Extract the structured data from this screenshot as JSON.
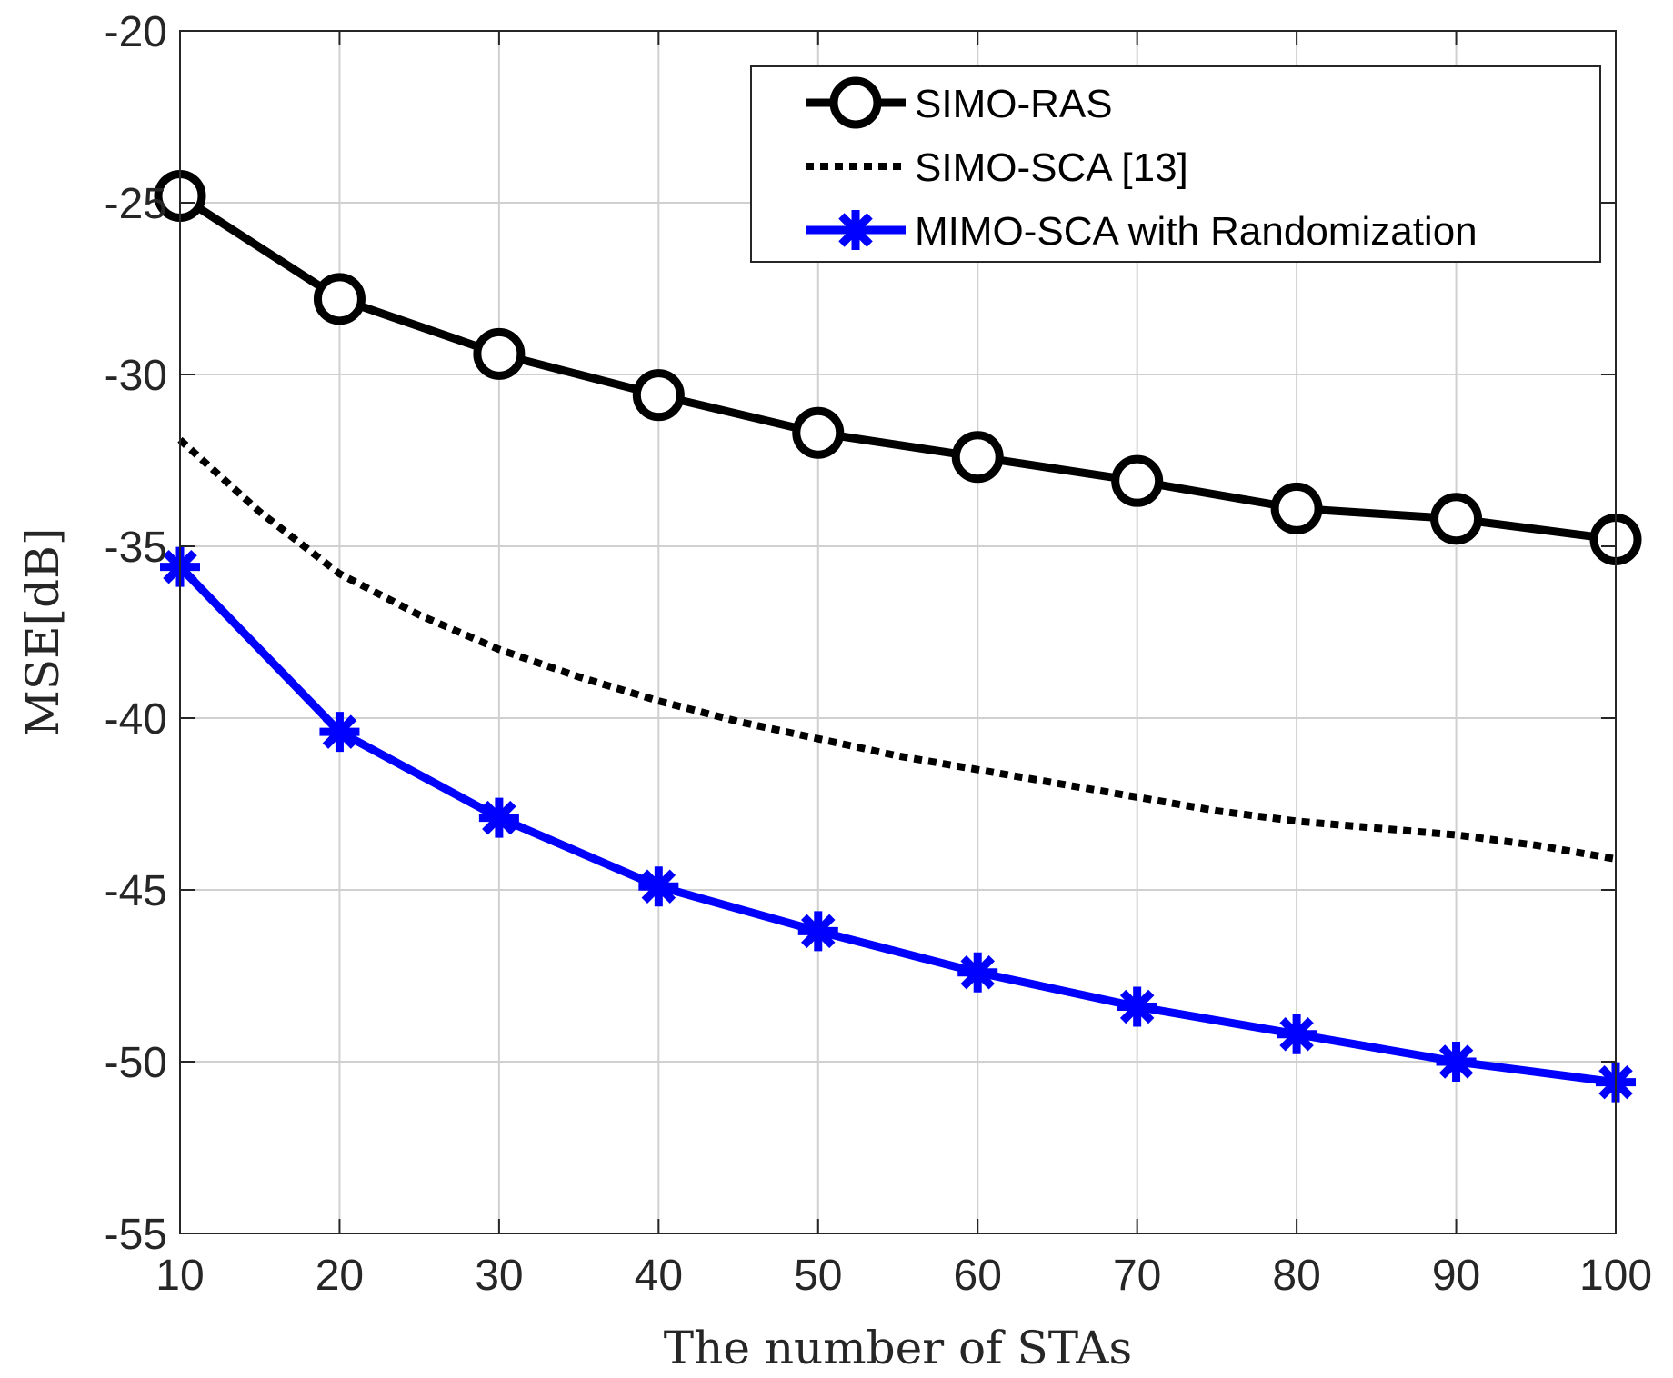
{
  "chart_data": {
    "type": "line",
    "title": "",
    "xlabel": "The number of STAs",
    "ylabel": "MSE[dB]",
    "xlim": [
      10,
      100
    ],
    "ylim": [
      -55,
      -20
    ],
    "xticks": [
      10,
      20,
      30,
      40,
      50,
      60,
      70,
      80,
      90,
      100
    ],
    "yticks": [
      -20,
      -25,
      -30,
      -35,
      -40,
      -45,
      -50,
      -55
    ],
    "xtick_labels": [
      "10",
      "20",
      "30",
      "40",
      "50",
      "60",
      "70",
      "80",
      "90",
      "100"
    ],
    "ytick_labels": [
      "-20",
      "-25",
      "-30",
      "-35",
      "-40",
      "-45",
      "-50",
      "-55"
    ],
    "grid": true,
    "legend_position": "top-right",
    "series": [
      {
        "name": "SIMO-RAS",
        "color": "#000000",
        "style": "solid",
        "marker": "circle",
        "x": [
          10,
          20,
          30,
          40,
          50,
          60,
          70,
          80,
          90,
          100
        ],
        "values": [
          -24.8,
          -27.8,
          -29.4,
          -30.6,
          -31.7,
          -32.4,
          -33.1,
          -33.9,
          -34.2,
          -34.8
        ]
      },
      {
        "name": "SIMO-SCA [13]",
        "color": "#000000",
        "style": "dotted",
        "marker": "none",
        "x": [
          10,
          15,
          20,
          25,
          30,
          35,
          40,
          45,
          50,
          55,
          60,
          65,
          70,
          75,
          80,
          85,
          90,
          95,
          100
        ],
        "values": [
          -31.9,
          -34.0,
          -35.8,
          -37.0,
          -38.0,
          -38.8,
          -39.5,
          -40.1,
          -40.6,
          -41.1,
          -41.5,
          -41.9,
          -42.3,
          -42.7,
          -43.0,
          -43.2,
          -43.4,
          -43.7,
          -44.1
        ]
      },
      {
        "name": "MIMO-SCA with Randomization",
        "color": "#0000ff",
        "style": "solid",
        "marker": "asterisk",
        "x": [
          10,
          20,
          30,
          40,
          50,
          60,
          70,
          80,
          90,
          100
        ],
        "values": [
          -35.6,
          -40.4,
          -42.9,
          -44.9,
          -46.2,
          -47.4,
          -48.4,
          -49.2,
          -50.0,
          -50.6
        ]
      }
    ]
  }
}
